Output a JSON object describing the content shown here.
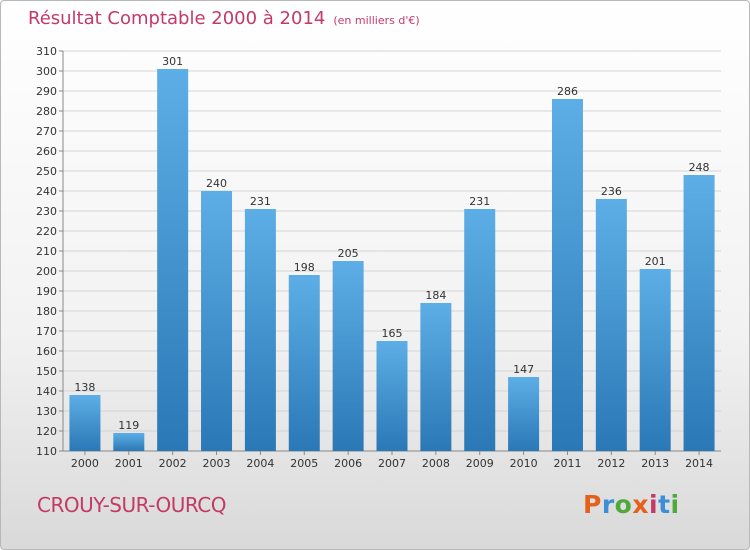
{
  "header": {
    "title": "Résultat Comptable 2000 à 2014",
    "subtitle": "(en milliers d'€)"
  },
  "footer": {
    "commune": "CROUY-SUR-OURCQ",
    "logo_letters": [
      "P",
      "r",
      "o",
      "x",
      "i",
      "t",
      "i"
    ]
  },
  "colors": {
    "accent": "#c43a66",
    "bar_top": "#5daee6",
    "bar_bottom": "#2a78b6",
    "logo": [
      "#e5601c",
      "#3a8fd8",
      "#4ea93a",
      "#e5601c",
      "#c43a66",
      "#3a8fd8",
      "#4ea93a"
    ]
  },
  "chart_data": {
    "type": "bar",
    "title": "Résultat Comptable 2000 à 2014",
    "ylabel": "",
    "xlabel": "",
    "ylim": [
      110,
      310
    ],
    "ytick_step": 10,
    "grid": true,
    "categories": [
      "2000",
      "2001",
      "2002",
      "2003",
      "2004",
      "2005",
      "2006",
      "2007",
      "2008",
      "2009",
      "2010",
      "2011",
      "2012",
      "2013",
      "2014"
    ],
    "values": [
      138,
      119,
      301,
      240,
      231,
      198,
      205,
      165,
      184,
      231,
      147,
      286,
      236,
      201,
      248
    ]
  }
}
